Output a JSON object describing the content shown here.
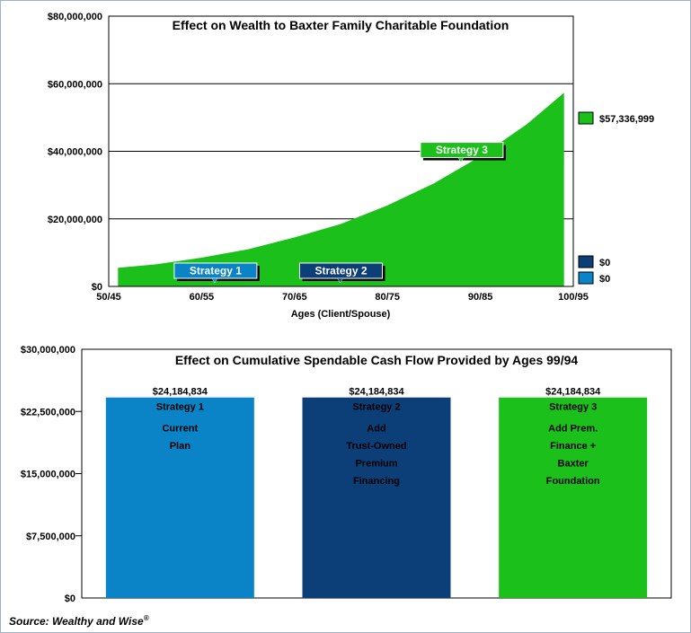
{
  "colors": {
    "strategy1": "#0a84c6",
    "strategy2": "#0c3f78",
    "strategy3": "#1bc01b",
    "area": "#1bc01b"
  },
  "source_prefix": "Source: Wealthy and Wise",
  "source_mark": "®",
  "chart_data": [
    {
      "type": "area",
      "title": "Effect on Wealth to Baxter Family Charitable Foundation",
      "xlabel": "Ages (Client/Spouse)",
      "ylabel": "",
      "x_ticks": [
        "50/45",
        "60/55",
        "70/65",
        "80/75",
        "90/85",
        "100/95"
      ],
      "xlim": [
        0,
        50
      ],
      "ylim": [
        0,
        80000000
      ],
      "y_ticks": [
        {
          "value": 0,
          "label": "$0"
        },
        {
          "value": 20000000,
          "label": "$20,000,000"
        },
        {
          "value": 40000000,
          "label": "$40,000,000"
        },
        {
          "value": 60000000,
          "label": "$60,000,000"
        },
        {
          "value": 80000000,
          "label": "$80,000,000"
        }
      ],
      "grid": true,
      "series": [
        {
          "name": "Strategy 3",
          "color": "#1bc01b",
          "x": [
            1,
            5,
            10,
            15,
            20,
            25,
            30,
            35,
            40,
            45,
            49
          ],
          "y": [
            5500000,
            6500000,
            8500000,
            11000000,
            14500000,
            18500000,
            24000000,
            30500000,
            38500000,
            48000000,
            57336999
          ]
        }
      ],
      "legend": [
        {
          "label": "$57,336,999",
          "color": "#1bc01b",
          "value": 57336999
        },
        {
          "label": "$0",
          "color": "#0c3f78",
          "value": 0
        },
        {
          "label": "$0",
          "color": "#0a84c6",
          "value": 0
        }
      ],
      "callouts": [
        {
          "label": "Strategy 1",
          "color": "#0a84c6",
          "at_x": 11.5,
          "at_y": 0
        },
        {
          "label": "Strategy 2",
          "color": "#0c3f78",
          "at_x": 25,
          "at_y": 0
        },
        {
          "label": "Strategy 3",
          "color": "#1bc01b",
          "at_x": 38,
          "at_y": 36000000
        }
      ]
    },
    {
      "type": "bar",
      "title": "Effect on Cumulative Spendable Cash Flow Provided by Ages 99/94",
      "ylim": [
        0,
        30000000
      ],
      "y_ticks": [
        {
          "value": 0,
          "label": "$0"
        },
        {
          "value": 7500000,
          "label": "$7,500,000"
        },
        {
          "value": 15000000,
          "label": "$15,000,000"
        },
        {
          "value": 22500000,
          "label": "$22,500,000"
        },
        {
          "value": 30000000,
          "label": "$30,000,000"
        }
      ],
      "grid": false,
      "categories": [
        "Strategy 1",
        "Strategy 2",
        "Strategy 3"
      ],
      "values": [
        24184834,
        24184834,
        24184834
      ],
      "value_labels": [
        "$24,184,834",
        "$24,184,834",
        "$24,184,834"
      ],
      "colors": [
        "#0a84c6",
        "#0c3f78",
        "#1bc01b"
      ],
      "descriptions": [
        [
          "Current",
          "Plan"
        ],
        [
          "Add",
          "Trust-Owned",
          "Premium",
          "Financing"
        ],
        [
          "Add Prem.",
          "Finance +",
          "Baxter",
          "Foundation"
        ]
      ]
    }
  ]
}
